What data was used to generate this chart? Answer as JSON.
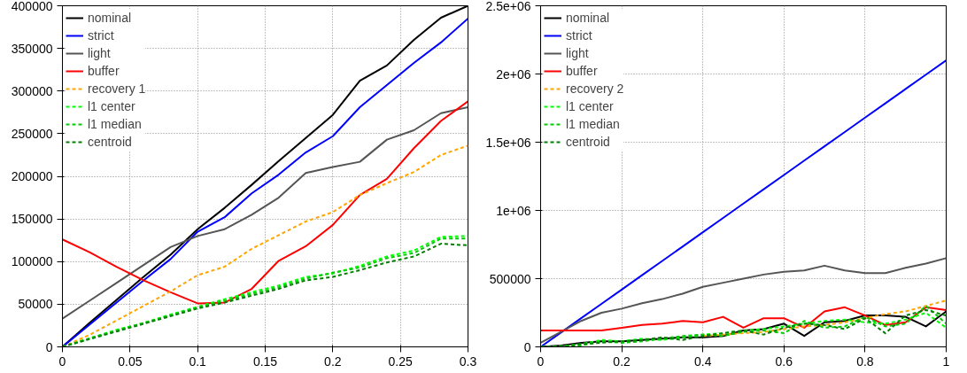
{
  "chart_data": [
    {
      "type": "line",
      "x": [
        0,
        0.02,
        0.04,
        0.06,
        0.08,
        0.1,
        0.12,
        0.14,
        0.16,
        0.18,
        0.2,
        0.22,
        0.24,
        0.26,
        0.28,
        0.3
      ],
      "xlim": [
        0,
        0.3
      ],
      "xticks": [
        0,
        0.05,
        0.1,
        0.15,
        0.2,
        0.25,
        0.3
      ],
      "ylim": [
        0,
        400000
      ],
      "yticks": [
        0,
        50000,
        100000,
        150000,
        200000,
        250000,
        300000,
        350000,
        400000
      ],
      "grid": true,
      "legend": "top left",
      "series": [
        {
          "name": "nominal",
          "color": "#000000",
          "line_style": "solid",
          "values": [
            0,
            28000,
            55000,
            82000,
            108000,
            138000,
            163000,
            190000,
            218000,
            245000,
            272000,
            312000,
            330000,
            360000,
            386000,
            400000
          ]
        },
        {
          "name": "strict",
          "color": "#0000ff",
          "line_style": "solid",
          "values": [
            0,
            26000,
            52000,
            78000,
            103000,
            135000,
            152000,
            180000,
            202000,
            228000,
            247000,
            281000,
            307000,
            333000,
            357000,
            385000
          ]
        },
        {
          "name": "light",
          "color": "#555555",
          "line_style": "solid",
          "values": [
            33000,
            54000,
            75000,
            96000,
            117000,
            130000,
            138000,
            155000,
            175000,
            204000,
            211000,
            217000,
            243000,
            254000,
            274000,
            281000
          ]
        },
        {
          "name": "buffer",
          "color": "#ff0000",
          "line_style": "solid",
          "values": [
            126000,
            111000,
            94000,
            78000,
            64000,
            51000,
            52000,
            68000,
            101000,
            118000,
            143000,
            178000,
            197000,
            233000,
            265000,
            288000
          ]
        },
        {
          "name": "recovery 1",
          "color": "#ffa500",
          "line_style": "dotted",
          "values": [
            0,
            14000,
            31000,
            48000,
            65000,
            84000,
            94000,
            115000,
            131000,
            147000,
            158000,
            178000,
            192000,
            205000,
            225000,
            236000
          ]
        },
        {
          "name": "l1 center",
          "color": "#00ff00",
          "line_style": "dotted",
          "values": [
            0,
            10000,
            20000,
            28000,
            38000,
            47000,
            56000,
            64000,
            72000,
            82000,
            86000,
            95000,
            106000,
            113000,
            129000,
            130000
          ]
        },
        {
          "name": "l1 median",
          "color": "#00cc00",
          "line_style": "dotted",
          "values": [
            0,
            10000,
            19000,
            28000,
            37000,
            46000,
            54000,
            62000,
            70000,
            80000,
            87000,
            93000,
            104000,
            110000,
            127000,
            127000
          ]
        },
        {
          "name": "centroid",
          "color": "#008000",
          "line_style": "dotted",
          "values": [
            0,
            9000,
            18000,
            27000,
            36000,
            45000,
            52000,
            60000,
            68000,
            78000,
            82000,
            90000,
            99000,
            106000,
            121000,
            119000
          ]
        }
      ]
    },
    {
      "type": "line",
      "x": [
        0,
        0.05,
        0.1,
        0.15,
        0.2,
        0.25,
        0.3,
        0.35,
        0.4,
        0.45,
        0.5,
        0.55,
        0.6,
        0.65,
        0.7,
        0.75,
        0.8,
        0.85,
        0.9,
        0.95,
        1
      ],
      "xlim": [
        0,
        1
      ],
      "xticks": [
        0,
        0.2,
        0.4,
        0.6,
        0.8,
        1
      ],
      "ylim": [
        0,
        2500000
      ],
      "yticks": [
        0,
        500000,
        {
          "value": 1000000,
          "label": "1e+06"
        },
        {
          "value": 1500000,
          "label": "1.5e+06"
        },
        {
          "value": 2000000,
          "label": "2e+06"
        },
        {
          "value": 2500000,
          "label": "2.5e+06"
        }
      ],
      "grid": true,
      "legend": "top left",
      "series": [
        {
          "name": "nominal",
          "color": "#000000",
          "line_style": "solid",
          "values": [
            0,
            10000,
            30000,
            40000,
            40000,
            50000,
            60000,
            70000,
            70000,
            80000,
            120000,
            130000,
            170000,
            80000,
            180000,
            190000,
            230000,
            230000,
            220000,
            150000,
            260000
          ]
        },
        {
          "name": "strict",
          "color": "#0000ff",
          "line_style": "solid",
          "values": [
            0,
            105000,
            210000,
            315000,
            420000,
            525000,
            630000,
            735000,
            840000,
            945000,
            1050000,
            1155000,
            1260000,
            1365000,
            1470000,
            1575000,
            1680000,
            1785000,
            1890000,
            1995000,
            2100000
          ]
        },
        {
          "name": "light",
          "color": "#555555",
          "line_style": "solid",
          "values": [
            30000,
            110000,
            190000,
            250000,
            280000,
            320000,
            350000,
            390000,
            440000,
            470000,
            500000,
            530000,
            550000,
            560000,
            595000,
            560000,
            540000,
            540000,
            580000,
            610000,
            650000
          ]
        },
        {
          "name": "buffer",
          "color": "#ff0000",
          "line_style": "solid",
          "values": [
            120000,
            120000,
            120000,
            120000,
            140000,
            160000,
            170000,
            190000,
            180000,
            220000,
            140000,
            210000,
            210000,
            140000,
            260000,
            290000,
            230000,
            160000,
            180000,
            290000,
            270000
          ]
        },
        {
          "name": "recovery 2",
          "color": "#ffa500",
          "line_style": "dotted",
          "values": [
            null,
            null,
            null,
            null,
            null,
            null,
            null,
            null,
            80000,
            90000,
            100000,
            110000,
            130000,
            150000,
            160000,
            180000,
            210000,
            240000,
            260000,
            300000,
            340000
          ]
        },
        {
          "name": "l1 center",
          "color": "#00ff00",
          "line_style": "dotted",
          "values": [
            0,
            5000,
            20000,
            50000,
            40000,
            60000,
            50000,
            70000,
            90000,
            100000,
            120000,
            130000,
            150000,
            170000,
            190000,
            200000,
            180000,
            170000,
            200000,
            250000,
            140000
          ]
        },
        {
          "name": "l1 median",
          "color": "#00cc00",
          "line_style": "dotted",
          "values": [
            0,
            0,
            10000,
            40000,
            30000,
            40000,
            60000,
            80000,
            90000,
            80000,
            110000,
            120000,
            100000,
            190000,
            140000,
            150000,
            220000,
            150000,
            170000,
            300000,
            170000
          ]
        },
        {
          "name": "centroid",
          "color": "#008000",
          "line_style": "dotted",
          "values": [
            0,
            0,
            20000,
            30000,
            40000,
            50000,
            70000,
            50000,
            80000,
            100000,
            120000,
            90000,
            140000,
            170000,
            160000,
            130000,
            210000,
            100000,
            230000,
            270000,
            230000
          ]
        }
      ]
    }
  ]
}
